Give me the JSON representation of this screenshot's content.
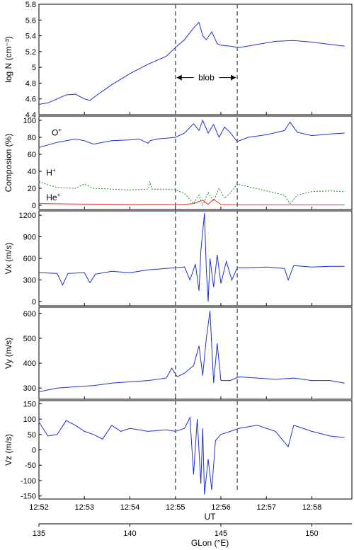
{
  "colors": {
    "blue": "#1f2fd6",
    "green": "#1f8f1f",
    "red": "#e03030",
    "dash": "#666666",
    "axis": "#000000"
  },
  "chart_data": {
    "type": "line",
    "x_top": {
      "label": "UT",
      "ticks": [
        "12:52",
        "12:53",
        "12:54",
        "12:55",
        "12:56",
        "12:57",
        "12:58"
      ]
    },
    "x_bottom": {
      "label": "GLon (°E)",
      "ticks": [
        "135",
        "140",
        "145",
        "150"
      ]
    },
    "markers": {
      "blob_start": 142.5,
      "blob_end": 145.9,
      "blob_label": "blob"
    },
    "panels": [
      {
        "id": "logN",
        "ylabel": "log N (cm⁻³)",
        "ylim": [
          4.4,
          5.8
        ],
        "yticks": [
          "4.4",
          "4.6",
          "4.8",
          "5",
          "5.2",
          "5.4",
          "5.6",
          "5.8"
        ],
        "series": [
          {
            "name": "",
            "color": "blue",
            "kind": "solid",
            "points": [
              [
                135,
                4.53
              ],
              [
                135.5,
                4.55
              ],
              [
                136,
                4.6
              ],
              [
                136.5,
                4.65
              ],
              [
                137,
                4.66
              ],
              [
                137.5,
                4.6
              ],
              [
                137.8,
                4.58
              ],
              [
                138.2,
                4.65
              ],
              [
                139,
                4.78
              ],
              [
                140,
                4.92
              ],
              [
                141,
                5.04
              ],
              [
                142,
                5.14
              ],
              [
                142.5,
                5.25
              ],
              [
                143,
                5.35
              ],
              [
                143.5,
                5.5
              ],
              [
                143.8,
                5.57
              ],
              [
                144,
                5.4
              ],
              [
                144.2,
                5.35
              ],
              [
                144.5,
                5.45
              ],
              [
                144.8,
                5.3
              ],
              [
                145,
                5.28
              ],
              [
                145.5,
                5.27
              ],
              [
                146,
                5.25
              ],
              [
                147,
                5.29
              ],
              [
                148,
                5.33
              ],
              [
                149,
                5.34
              ],
              [
                150,
                5.32
              ],
              [
                151,
                5.29
              ],
              [
                151.8,
                5.27
              ]
            ]
          }
        ],
        "annotations": [
          {
            "text": "blob",
            "x": 144.2,
            "y": 4.87
          }
        ]
      },
      {
        "id": "composition",
        "ylabel": "Composion (%)",
        "ylim": [
          -5,
          105
        ],
        "yticks": [
          "0",
          "20",
          "40",
          "60",
          "80",
          "100"
        ],
        "series": [
          {
            "name": "O+",
            "color": "blue",
            "kind": "solid",
            "points": [
              [
                135,
                68
              ],
              [
                135.5,
                71
              ],
              [
                136,
                74
              ],
              [
                137,
                78
              ],
              [
                137.5,
                76
              ],
              [
                138,
                72
              ],
              [
                139,
                76
              ],
              [
                140,
                77
              ],
              [
                140.5,
                78
              ],
              [
                141,
                73
              ],
              [
                141.1,
                76
              ],
              [
                141.5,
                78
              ],
              [
                142,
                79
              ],
              [
                142.5,
                80
              ],
              [
                143,
                85
              ],
              [
                143.5,
                96
              ],
              [
                143.8,
                88
              ],
              [
                144,
                100
              ],
              [
                144.3,
                85
              ],
              [
                144.6,
                95
              ],
              [
                144.9,
                80
              ],
              [
                145.2,
                92
              ],
              [
                145.5,
                86
              ],
              [
                145.9,
                75
              ],
              [
                146.5,
                80
              ],
              [
                147.5,
                83
              ],
              [
                148.5,
                88
              ],
              [
                148.8,
                98
              ],
              [
                149.2,
                86
              ],
              [
                150,
                82
              ],
              [
                151,
                84
              ],
              [
                151.8,
                85
              ]
            ]
          },
          {
            "name": "H+",
            "color": "green",
            "kind": "dotted",
            "points": [
              [
                135,
                28
              ],
              [
                135.5,
                24
              ],
              [
                136,
                21
              ],
              [
                137,
                20
              ],
              [
                137.5,
                25
              ],
              [
                138,
                20
              ],
              [
                139,
                19
              ],
              [
                140,
                18
              ],
              [
                141,
                19
              ],
              [
                141.1,
                28
              ],
              [
                141.2,
                19
              ],
              [
                142,
                19
              ],
              [
                142.5,
                18
              ],
              [
                143,
                14
              ],
              [
                143.5,
                2
              ],
              [
                143.8,
                12
              ],
              [
                144,
                0
              ],
              [
                144.3,
                15
              ],
              [
                144.6,
                5
              ],
              [
                144.9,
                20
              ],
              [
                145.2,
                8
              ],
              [
                145.5,
                14
              ],
              [
                145.9,
                25
              ],
              [
                146.5,
                22
              ],
              [
                147.5,
                17
              ],
              [
                148.5,
                12
              ],
              [
                148.8,
                2
              ],
              [
                149.2,
                12
              ],
              [
                150,
                16
              ],
              [
                151,
                17
              ],
              [
                151.8,
                16
              ]
            ]
          },
          {
            "name": "He+",
            "color": "red",
            "kind": "solid",
            "points": [
              [
                135,
                2
              ],
              [
                137,
                1.5
              ],
              [
                140,
                1
              ],
              [
                142,
                1
              ],
              [
                143,
                1
              ],
              [
                143.5,
                2
              ],
              [
                144,
                6
              ],
              [
                144.3,
                1
              ],
              [
                144.6,
                7
              ],
              [
                145,
                1
              ],
              [
                146,
                0.5
              ],
              [
                148,
                0.5
              ],
              [
                151.8,
                0.5
              ]
            ]
          }
        ],
        "labels": [
          {
            "base": "O",
            "sup": "+",
            "x": 135.7,
            "y": 82
          },
          {
            "base": "H",
            "sup": "+",
            "x": 135.4,
            "y": 35
          },
          {
            "base": "He",
            "sup": "+",
            "x": 135.4,
            "y": 6
          }
        ]
      },
      {
        "id": "vx",
        "ylabel": "Vx (m/s)",
        "ylim": [
          -60,
          1260
        ],
        "yticks": [
          "0",
          "300",
          "600",
          "900",
          "1200"
        ],
        "series": [
          {
            "name": "",
            "color": "blue",
            "kind": "solid",
            "points": [
              [
                135,
                400
              ],
              [
                136,
                390
              ],
              [
                136.3,
                230
              ],
              [
                136.6,
                390
              ],
              [
                137.5,
                400
              ],
              [
                137.8,
                260
              ],
              [
                138.1,
                380
              ],
              [
                139,
                420
              ],
              [
                140,
                400
              ],
              [
                141,
                440
              ],
              [
                142,
                460
              ],
              [
                142.5,
                470
              ],
              [
                143,
                480
              ],
              [
                143.3,
                300
              ],
              [
                143.6,
                520
              ],
              [
                143.8,
                150
              ],
              [
                143.9,
                700
              ],
              [
                144.1,
                1230
              ],
              [
                144.2,
                450
              ],
              [
                144.3,
                0
              ],
              [
                144.4,
                600
              ],
              [
                144.6,
                200
              ],
              [
                144.8,
                650
              ],
              [
                145,
                250
              ],
              [
                145.3,
                560
              ],
              [
                145.6,
                300
              ],
              [
                145.9,
                470
              ],
              [
                146.5,
                470
              ],
              [
                147.5,
                480
              ],
              [
                148.5,
                460
              ],
              [
                148.7,
                300
              ],
              [
                149,
                500
              ],
              [
                150,
                480
              ],
              [
                151,
                490
              ],
              [
                151.8,
                490
              ]
            ]
          }
        ]
      },
      {
        "id": "vy",
        "ylabel": "Vy (m/s)",
        "ylim": [
          255,
          625
        ],
        "yticks": [
          "300",
          "400",
          "500",
          "600"
        ],
        "series": [
          {
            "name": "",
            "color": "blue",
            "kind": "solid",
            "points": [
              [
                135,
                285
              ],
              [
                136,
                300
              ],
              [
                137,
                305
              ],
              [
                138,
                310
              ],
              [
                139,
                320
              ],
              [
                140,
                325
              ],
              [
                141,
                330
              ],
              [
                142,
                340
              ],
              [
                142.3,
                380
              ],
              [
                142.6,
                345
              ],
              [
                143,
                360
              ],
              [
                143.5,
                390
              ],
              [
                143.8,
                470
              ],
              [
                144,
                350
              ],
              [
                144.2,
                500
              ],
              [
                144.4,
                610
              ],
              [
                144.6,
                320
              ],
              [
                144.8,
                480
              ],
              [
                145,
                330
              ],
              [
                145.5,
                330
              ],
              [
                146,
                345
              ],
              [
                147,
                340
              ],
              [
                148,
                335
              ],
              [
                149,
                340
              ],
              [
                150,
                330
              ],
              [
                151,
                330
              ],
              [
                151.8,
                320
              ]
            ]
          }
        ]
      },
      {
        "id": "vz",
        "ylabel": "Vz (m/s)",
        "ylim": [
          -160,
          160
        ],
        "yticks": [
          "-150",
          "-100",
          "-50",
          "0",
          "50",
          "100",
          "150"
        ],
        "series": [
          {
            "name": "",
            "color": "blue",
            "kind": "solid",
            "points": [
              [
                135,
                90
              ],
              [
                135.5,
                45
              ],
              [
                136,
                50
              ],
              [
                136.5,
                95
              ],
              [
                137,
                80
              ],
              [
                137.5,
                60
              ],
              [
                138,
                50
              ],
              [
                138.5,
                35
              ],
              [
                139,
                80
              ],
              [
                139.5,
                60
              ],
              [
                140,
                70
              ],
              [
                141,
                60
              ],
              [
                142,
                65
              ],
              [
                142.5,
                60
              ],
              [
                143,
                70
              ],
              [
                143.3,
                105
              ],
              [
                143.5,
                -80
              ],
              [
                143.7,
                100
              ],
              [
                143.9,
                -110
              ],
              [
                144,
                70
              ],
              [
                144.1,
                -145
              ],
              [
                144.3,
                -30
              ],
              [
                144.5,
                -130
              ],
              [
                144.7,
                30
              ],
              [
                145,
                50
              ],
              [
                146,
                70
              ],
              [
                147,
                80
              ],
              [
                148,
                60
              ],
              [
                148.7,
                10
              ],
              [
                149,
                80
              ],
              [
                150,
                60
              ],
              [
                151,
                45
              ],
              [
                151.8,
                40
              ]
            ]
          }
        ]
      }
    ]
  }
}
